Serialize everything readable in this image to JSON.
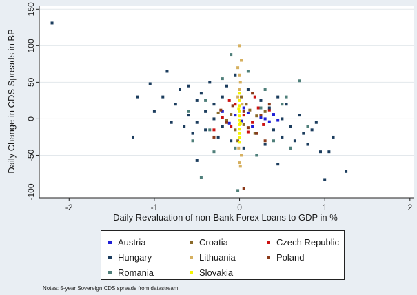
{
  "chart_data": {
    "type": "scatter",
    "xlabel": "Daily Revaluation of non-Bank Forex Loans to GDP in %",
    "ylabel": "Daily Change in CDS Spreads in BP",
    "xlim": [
      -2.35,
      2.05
    ],
    "ylim": [
      -108,
      155
    ],
    "xticks": [
      -2,
      -1,
      0,
      1,
      2
    ],
    "yticks": [
      -100,
      -50,
      0,
      50,
      100,
      150
    ],
    "xtick_labels": [
      "-2",
      "-1",
      "0",
      "1",
      "2"
    ],
    "ytick_labels": [
      "-100",
      "-50",
      "0",
      "50",
      "100",
      "150"
    ],
    "grid": true,
    "legend_position": "bottom",
    "series": [
      {
        "name": "Austria",
        "color": "#1f1fd6",
        "points": [
          [
            -0.05,
            5
          ],
          [
            0.02,
            -3
          ],
          [
            0.1,
            8
          ],
          [
            -0.12,
            -6
          ],
          [
            0.25,
            2
          ],
          [
            0.35,
            -4
          ],
          [
            -0.2,
            10
          ],
          [
            0.15,
            -10
          ],
          [
            0.05,
            15
          ],
          [
            0.4,
            6
          ],
          [
            0.3,
            0
          ],
          [
            0.45,
            -2
          ]
        ]
      },
      {
        "name": "Croatia",
        "color": "#8a6a2a",
        "points": [
          [
            -0.1,
            6
          ],
          [
            0.05,
            -8
          ],
          [
            0.12,
            12
          ],
          [
            -0.15,
            -2
          ],
          [
            0.2,
            4
          ],
          [
            -0.05,
            -15
          ],
          [
            0.08,
            20
          ],
          [
            -0.25,
            8
          ],
          [
            0.18,
            -20
          ],
          [
            0.02,
            30
          ],
          [
            -0.02,
            -30
          ],
          [
            0.3,
            10
          ]
        ]
      },
      {
        "name": "Czech Republic",
        "color": "#cc1111",
        "points": [
          [
            -0.1,
            -10
          ],
          [
            0.05,
            5
          ],
          [
            0.15,
            -5
          ],
          [
            -0.2,
            2
          ],
          [
            0.22,
            15
          ],
          [
            -0.05,
            20
          ],
          [
            0.1,
            -18
          ],
          [
            0.28,
            -8
          ],
          [
            -0.3,
            -15
          ],
          [
            0.35,
            12
          ],
          [
            -0.12,
            25
          ],
          [
            0.18,
            30
          ]
        ]
      },
      {
        "name": "Hungary",
        "color": "#1c3d5e",
        "points": [
          [
            -2.2,
            131
          ],
          [
            -1.25,
            -25
          ],
          [
            -1.2,
            30
          ],
          [
            -1.05,
            48
          ],
          [
            -1.0,
            10
          ],
          [
            -0.85,
            65
          ],
          [
            -0.9,
            30
          ],
          [
            -0.8,
            -5
          ],
          [
            -0.75,
            20
          ],
          [
            -0.7,
            40
          ],
          [
            -0.65,
            -10
          ],
          [
            -0.6,
            45
          ],
          [
            -0.6,
            5
          ],
          [
            -0.55,
            -20
          ],
          [
            -0.5,
            25
          ],
          [
            -0.5,
            -5
          ],
          [
            -0.45,
            35
          ],
          [
            -0.4,
            10
          ],
          [
            -0.4,
            -15
          ],
          [
            -0.35,
            50
          ],
          [
            -0.3,
            0
          ],
          [
            -0.3,
            20
          ],
          [
            -0.25,
            -25
          ],
          [
            -0.2,
            30
          ],
          [
            -0.2,
            -10
          ],
          [
            -0.15,
            45
          ],
          [
            -0.1,
            -30
          ],
          [
            -0.05,
            60
          ],
          [
            0.05,
            -40
          ],
          [
            0.1,
            40
          ],
          [
            0.2,
            -20
          ],
          [
            0.25,
            25
          ],
          [
            0.3,
            -35
          ],
          [
            0.35,
            15
          ],
          [
            0.4,
            -15
          ],
          [
            0.45,
            30
          ],
          [
            0.5,
            0
          ],
          [
            0.5,
            -25
          ],
          [
            0.55,
            20
          ],
          [
            0.6,
            -10
          ],
          [
            0.65,
            -30
          ],
          [
            0.7,
            5
          ],
          [
            0.75,
            -20
          ],
          [
            0.8,
            -35
          ],
          [
            0.85,
            -15
          ],
          [
            0.9,
            -5
          ],
          [
            0.95,
            -45
          ],
          [
            1.0,
            -83
          ],
          [
            1.05,
            -45
          ],
          [
            1.1,
            -25
          ],
          [
            1.25,
            -72
          ],
          [
            -0.5,
            -57
          ],
          [
            0.45,
            -62
          ],
          [
            0.6,
            -40
          ]
        ]
      },
      {
        "name": "Lithuania",
        "color": "#d6b060",
        "points": [
          [
            0.0,
            100
          ],
          [
            0.02,
            80
          ],
          [
            -0.02,
            70
          ],
          [
            0.0,
            60
          ],
          [
            0.01,
            50
          ],
          [
            0.0,
            40
          ],
          [
            -0.01,
            -40
          ],
          [
            0.02,
            -50
          ],
          [
            0.0,
            -60
          ],
          [
            0.01,
            -65
          ],
          [
            -0.02,
            30
          ],
          [
            0.03,
            20
          ],
          [
            0.0,
            -20
          ]
        ]
      },
      {
        "name": "Poland",
        "color": "#8b3a1a",
        "points": [
          [
            -0.15,
            -5
          ],
          [
            0.05,
            10
          ],
          [
            0.1,
            -12
          ],
          [
            -0.08,
            18
          ],
          [
            0.2,
            -20
          ],
          [
            0.25,
            5
          ],
          [
            -0.22,
            12
          ],
          [
            0.3,
            -30
          ],
          [
            0.05,
            -95
          ],
          [
            -0.3,
            -25
          ],
          [
            0.15,
            35
          ],
          [
            0.35,
            20
          ]
        ]
      },
      {
        "name": "Romania",
        "color": "#4f7f7a",
        "points": [
          [
            -0.45,
            -80
          ],
          [
            -0.6,
            10
          ],
          [
            -0.55,
            -30
          ],
          [
            -0.4,
            25
          ],
          [
            -0.3,
            -45
          ],
          [
            -0.2,
            55
          ],
          [
            -0.1,
            88
          ],
          [
            -0.05,
            -40
          ],
          [
            -0.02,
            -98
          ],
          [
            0.1,
            65
          ],
          [
            0.2,
            -50
          ],
          [
            0.3,
            40
          ],
          [
            0.4,
            -30
          ],
          [
            0.5,
            20
          ],
          [
            0.6,
            -40
          ],
          [
            0.7,
            52
          ],
          [
            0.8,
            -10
          ],
          [
            0.55,
            30
          ],
          [
            -0.35,
            -15
          ],
          [
            0.25,
            15
          ]
        ]
      },
      {
        "name": "Slovakia",
        "color": "#f5f500",
        "points": [
          [
            0.0,
            35
          ],
          [
            0.0,
            25
          ],
          [
            0.0,
            18
          ],
          [
            0.0,
            10
          ],
          [
            0.0,
            4
          ],
          [
            0.0,
            -2
          ],
          [
            0.0,
            -8
          ],
          [
            0.0,
            -14
          ],
          [
            0.0,
            -20
          ],
          [
            0.0,
            -26
          ],
          [
            0.0,
            -32
          ],
          [
            -0.01,
            14
          ],
          [
            0.01,
            -6
          ]
        ]
      }
    ]
  },
  "legend": {
    "items": [
      {
        "label": "Austria",
        "color": "#1f1fd6"
      },
      {
        "label": "Croatia",
        "color": "#8a6a2a"
      },
      {
        "label": "Czech Republic",
        "color": "#cc1111"
      },
      {
        "label": "Hungary",
        "color": "#1c3d5e"
      },
      {
        "label": "Lithuania",
        "color": "#d6b060"
      },
      {
        "label": "Poland",
        "color": "#8b3a1a"
      },
      {
        "label": "Romania",
        "color": "#4f7f7a"
      },
      {
        "label": "Slovakia",
        "color": "#f5f500"
      }
    ]
  },
  "notes": "Notes: 5-year Sovereign CDS spreads from datastream."
}
